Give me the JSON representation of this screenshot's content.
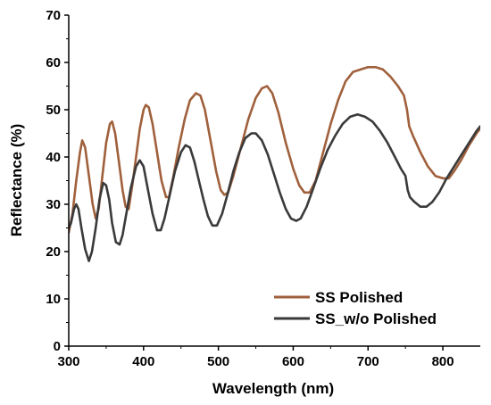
{
  "chart_data": {
    "type": "line",
    "xlabel": "Wavelength (nm)",
    "ylabel": "Reflectance (%)",
    "xlim": [
      300,
      850
    ],
    "ylim": [
      0,
      70
    ],
    "xticks": [
      300,
      400,
      500,
      600,
      700,
      800
    ],
    "yticks": [
      0,
      10,
      20,
      30,
      40,
      50,
      60,
      70
    ],
    "grid": false,
    "legend_position": "bottom-right",
    "series": [
      {
        "name": "SS Polished",
        "color": "#A0603C",
        "points": [
          [
            300,
            24
          ],
          [
            305,
            28
          ],
          [
            310,
            35
          ],
          [
            315,
            41
          ],
          [
            318,
            43.5
          ],
          [
            322,
            42
          ],
          [
            327,
            36
          ],
          [
            332,
            30
          ],
          [
            336,
            27
          ],
          [
            340,
            29
          ],
          [
            345,
            36
          ],
          [
            350,
            43
          ],
          [
            355,
            47
          ],
          [
            358,
            47.5
          ],
          [
            362,
            45
          ],
          [
            367,
            39
          ],
          [
            372,
            33
          ],
          [
            376,
            29.5
          ],
          [
            380,
            29
          ],
          [
            385,
            34
          ],
          [
            390,
            40
          ],
          [
            395,
            46
          ],
          [
            400,
            50
          ],
          [
            403,
            51
          ],
          [
            407,
            50.5
          ],
          [
            412,
            47
          ],
          [
            418,
            41
          ],
          [
            424,
            35
          ],
          [
            430,
            31.5
          ],
          [
            434,
            31.5
          ],
          [
            440,
            36
          ],
          [
            447,
            42
          ],
          [
            455,
            48
          ],
          [
            462,
            52
          ],
          [
            470,
            53.5
          ],
          [
            476,
            53
          ],
          [
            482,
            50
          ],
          [
            490,
            43
          ],
          [
            497,
            37
          ],
          [
            503,
            33
          ],
          [
            508,
            32
          ],
          [
            513,
            32.5
          ],
          [
            520,
            36
          ],
          [
            530,
            42
          ],
          [
            540,
            48
          ],
          [
            550,
            52.5
          ],
          [
            558,
            54.5
          ],
          [
            565,
            55
          ],
          [
            572,
            53.5
          ],
          [
            580,
            49.5
          ],
          [
            590,
            43
          ],
          [
            600,
            37.5
          ],
          [
            608,
            34
          ],
          [
            615,
            32.5
          ],
          [
            622,
            32.5
          ],
          [
            630,
            35
          ],
          [
            640,
            41
          ],
          [
            650,
            47
          ],
          [
            660,
            52
          ],
          [
            670,
            56
          ],
          [
            680,
            58
          ],
          [
            690,
            58.5
          ],
          [
            700,
            59
          ],
          [
            710,
            59
          ],
          [
            720,
            58.5
          ],
          [
            730,
            57
          ],
          [
            740,
            55
          ],
          [
            748,
            53
          ],
          [
            752,
            50
          ],
          [
            755,
            46.5
          ],
          [
            760,
            44.5
          ],
          [
            770,
            41
          ],
          [
            780,
            38
          ],
          [
            790,
            36
          ],
          [
            800,
            35.5
          ],
          [
            808,
            35.5
          ],
          [
            815,
            37
          ],
          [
            825,
            39.5
          ],
          [
            835,
            42.5
          ],
          [
            845,
            45
          ],
          [
            850,
            46
          ]
        ]
      },
      {
        "name": "SS_w/o Polished",
        "color": "#3A3A3A",
        "points": [
          [
            300,
            25
          ],
          [
            303,
            26
          ],
          [
            307,
            29
          ],
          [
            310,
            30
          ],
          [
            313,
            29
          ],
          [
            317,
            25
          ],
          [
            322,
            20.5
          ],
          [
            327,
            18
          ],
          [
            331,
            20
          ],
          [
            336,
            25
          ],
          [
            341,
            31
          ],
          [
            346,
            34.5
          ],
          [
            350,
            34
          ],
          [
            354,
            31
          ],
          [
            358,
            26
          ],
          [
            363,
            22
          ],
          [
            368,
            21.5
          ],
          [
            372,
            23.5
          ],
          [
            377,
            28
          ],
          [
            383,
            33.5
          ],
          [
            390,
            38
          ],
          [
            395,
            39.3
          ],
          [
            400,
            38
          ],
          [
            406,
            33
          ],
          [
            412,
            28
          ],
          [
            418,
            24.5
          ],
          [
            423,
            24.5
          ],
          [
            428,
            27
          ],
          [
            435,
            32
          ],
          [
            442,
            37
          ],
          [
            450,
            41
          ],
          [
            456,
            42.5
          ],
          [
            462,
            42
          ],
          [
            468,
            39
          ],
          [
            474,
            35
          ],
          [
            480,
            31
          ],
          [
            486,
            27.5
          ],
          [
            492,
            25.5
          ],
          [
            498,
            25.5
          ],
          [
            505,
            28
          ],
          [
            512,
            32
          ],
          [
            520,
            37
          ],
          [
            528,
            41
          ],
          [
            536,
            44
          ],
          [
            544,
            45
          ],
          [
            550,
            45
          ],
          [
            558,
            43.5
          ],
          [
            566,
            40.5
          ],
          [
            574,
            36.5
          ],
          [
            582,
            32.5
          ],
          [
            590,
            29
          ],
          [
            597,
            27
          ],
          [
            604,
            26.5
          ],
          [
            610,
            27
          ],
          [
            618,
            29.5
          ],
          [
            626,
            33
          ],
          [
            636,
            37.5
          ],
          [
            646,
            41.5
          ],
          [
            656,
            44.5
          ],
          [
            666,
            47
          ],
          [
            676,
            48.5
          ],
          [
            686,
            49
          ],
          [
            696,
            48.5
          ],
          [
            706,
            47.5
          ],
          [
            716,
            45.5
          ],
          [
            726,
            43
          ],
          [
            736,
            40
          ],
          [
            744,
            37.5
          ],
          [
            750,
            36
          ],
          [
            753,
            33
          ],
          [
            756,
            31.5
          ],
          [
            762,
            30.5
          ],
          [
            770,
            29.5
          ],
          [
            778,
            29.5
          ],
          [
            786,
            30.5
          ],
          [
            795,
            32.5
          ],
          [
            805,
            35.5
          ],
          [
            815,
            38
          ],
          [
            825,
            40.5
          ],
          [
            835,
            43
          ],
          [
            845,
            45.5
          ],
          [
            850,
            46.5
          ]
        ]
      }
    ]
  }
}
